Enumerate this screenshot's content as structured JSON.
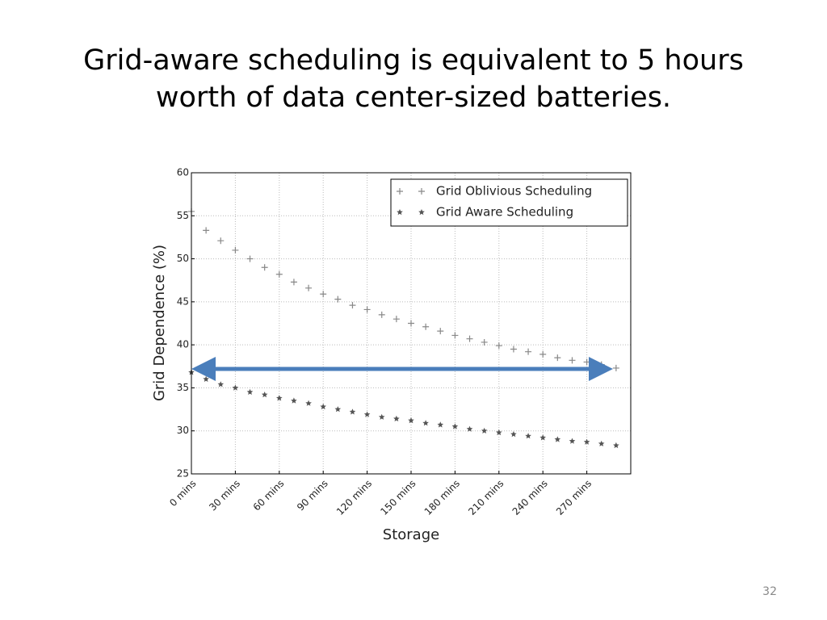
{
  "slide": {
    "title": "Grid-aware scheduling is equivalent to 5 hours worth of data center-sized batteries.",
    "page_number": "32"
  },
  "chart_data": {
    "type": "scatter",
    "xlabel": "Storage",
    "ylabel": "Grid Dependence (%)",
    "x": [
      0,
      10,
      20,
      30,
      40,
      50,
      60,
      70,
      80,
      90,
      100,
      110,
      120,
      130,
      140,
      150,
      160,
      170,
      180,
      190,
      200,
      210,
      220,
      230,
      240,
      250,
      260,
      270,
      280,
      290
    ],
    "series": [
      {
        "name": "Grid Oblivious Scheduling",
        "color": "#888888",
        "marker": "plus",
        "values": [
          55.5,
          53.3,
          52.1,
          51.0,
          50.0,
          49.0,
          48.2,
          47.3,
          46.6,
          45.9,
          45.3,
          44.6,
          44.1,
          43.5,
          43.0,
          42.5,
          42.1,
          41.6,
          41.1,
          40.7,
          40.3,
          39.9,
          39.5,
          39.2,
          38.9,
          38.5,
          38.2,
          38.0,
          37.7,
          37.3
        ]
      },
      {
        "name": "Grid Aware Scheduling",
        "color": "#555555",
        "marker": "star",
        "values": [
          36.8,
          36.0,
          35.4,
          35.0,
          34.5,
          34.2,
          33.8,
          33.5,
          33.2,
          32.8,
          32.5,
          32.2,
          31.9,
          31.6,
          31.4,
          31.2,
          30.9,
          30.7,
          30.5,
          30.2,
          30.0,
          29.8,
          29.6,
          29.4,
          29.2,
          29.0,
          28.8,
          28.7,
          28.5,
          28.3
        ]
      }
    ],
    "xlim": [
      0,
      300
    ],
    "xticks": [
      {
        "value": 0,
        "label": "0 mins"
      },
      {
        "value": 30,
        "label": "30 mins"
      },
      {
        "value": 60,
        "label": "60 mins"
      },
      {
        "value": 90,
        "label": "90 mins"
      },
      {
        "value": 120,
        "label": "120 mins"
      },
      {
        "value": 150,
        "label": "150 mins"
      },
      {
        "value": 180,
        "label": "180 mins"
      },
      {
        "value": 210,
        "label": "210 mins"
      },
      {
        "value": 240,
        "label": "240 mins"
      },
      {
        "value": 270,
        "label": "270 mins"
      }
    ],
    "ylim": [
      25,
      60
    ],
    "yticks": [
      25,
      30,
      35,
      40,
      45,
      50,
      55,
      60
    ],
    "grid": true,
    "legend": "upper right"
  }
}
